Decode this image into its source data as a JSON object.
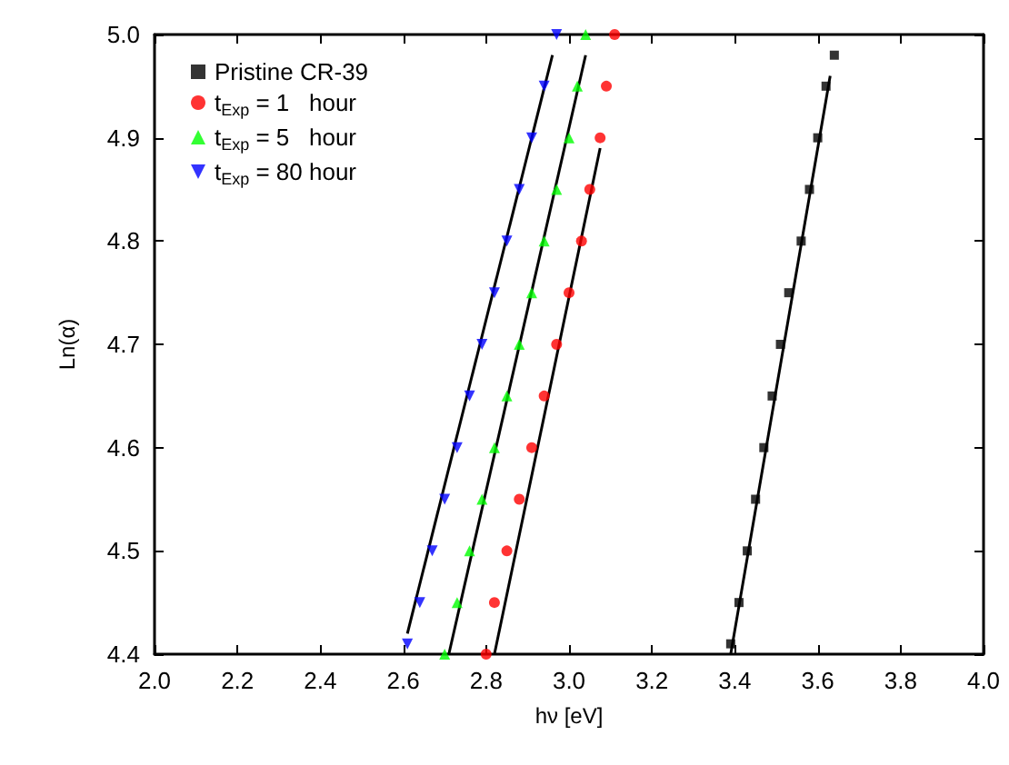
{
  "chart_data": {
    "type": "scatter",
    "xlabel": "hν [eV]",
    "ylabel": "Ln(α)",
    "xlim": [
      2.0,
      4.0
    ],
    "ylim": [
      4.4,
      5.0
    ],
    "xticks": [
      {
        "value": 2,
        "label": "2.0"
      },
      {
        "value": 2.2,
        "label": "2.2"
      },
      {
        "value": 2.4,
        "label": "2.4"
      },
      {
        "value": 2.6,
        "label": "2.6"
      },
      {
        "value": 2.8,
        "label": "2.8"
      },
      {
        "value": 3,
        "label": "3.0"
      },
      {
        "value": 3.2,
        "label": "3.2"
      },
      {
        "value": 3.4,
        "label": "3.4"
      },
      {
        "value": 3.6,
        "label": "3.6"
      },
      {
        "value": 3.8,
        "label": "3.8"
      },
      {
        "value": 4,
        "label": "4.0"
      }
    ],
    "yticks": [
      {
        "value": 4.4,
        "label": "4.4"
      },
      {
        "value": 4.5,
        "label": "4.5"
      },
      {
        "value": 4.6,
        "label": "4.6"
      },
      {
        "value": 4.7,
        "label": "4.7"
      },
      {
        "value": 4.8,
        "label": "4.8"
      },
      {
        "value": 4.9,
        "label": "4.9"
      },
      {
        "value": 5,
        "label": "5.0"
      }
    ],
    "grid": false,
    "legend": "top left",
    "series": [
      {
        "name": "Pristine CR-39",
        "color": "#000000",
        "marker": "square",
        "x": [
          3.39,
          3.41,
          3.43,
          3.45,
          3.47,
          3.49,
          3.51,
          3.53,
          3.56,
          3.58,
          3.6,
          3.62,
          3.64
        ],
        "values": [
          4.41,
          4.45,
          4.5,
          4.55,
          4.6,
          4.65,
          4.7,
          4.75,
          4.8,
          4.85,
          4.9,
          4.95,
          4.98
        ]
      },
      {
        "name": "t$_{Exp}$ = 1   hour",
        "color": "#ff0000",
        "marker": "circle",
        "x": [
          2.8,
          2.82,
          2.85,
          2.88,
          2.91,
          2.94,
          2.97,
          3.0,
          3.03,
          3.05,
          3.075,
          3.09,
          3.11
        ],
        "values": [
          4.4,
          4.45,
          4.5,
          4.55,
          4.6,
          4.65,
          4.7,
          4.75,
          4.8,
          4.85,
          4.9,
          4.95,
          5.0
        ]
      },
      {
        "name": "t$_{Exp}$ = 5   hour",
        "color": "#00ff00",
        "marker": "triangle",
        "x": [
          2.7,
          2.73,
          2.76,
          2.79,
          2.82,
          2.85,
          2.88,
          2.91,
          2.94,
          2.97,
          3.0,
          3.02,
          3.04
        ],
        "values": [
          4.4,
          4.45,
          4.5,
          4.55,
          4.6,
          4.65,
          4.7,
          4.75,
          4.8,
          4.85,
          4.9,
          4.95,
          5.0
        ]
      },
      {
        "name": "t$_{Exp}$ = 80 hour",
        "color": "#0000ff",
        "marker": "triangle-down",
        "x": [
          2.61,
          2.64,
          2.67,
          2.7,
          2.73,
          2.76,
          2.79,
          2.82,
          2.85,
          2.88,
          2.91,
          2.94,
          2.97
        ],
        "values": [
          4.41,
          4.45,
          4.5,
          4.55,
          4.6,
          4.65,
          4.7,
          4.75,
          4.8,
          4.85,
          4.9,
          4.95,
          5.0
        ]
      },
      {
        "type": "line",
        "color": "#000000",
        "marker": "none",
        "x": [
          3.39,
          3.63
        ],
        "values": [
          4.4,
          4.96
        ]
      },
      {
        "type": "line",
        "color": "#000000",
        "marker": "none",
        "x": [
          2.82,
          3.075
        ],
        "values": [
          4.4,
          4.89
        ]
      },
      {
        "type": "line",
        "color": "#000000",
        "marker": "none",
        "x": [
          2.71,
          3.04
        ],
        "values": [
          4.4,
          4.98
        ]
      },
      {
        "type": "line",
        "color": "#000000",
        "marker": "none",
        "x": [
          2.61,
          2.96
        ],
        "values": [
          4.42,
          4.98
        ]
      }
    ]
  }
}
